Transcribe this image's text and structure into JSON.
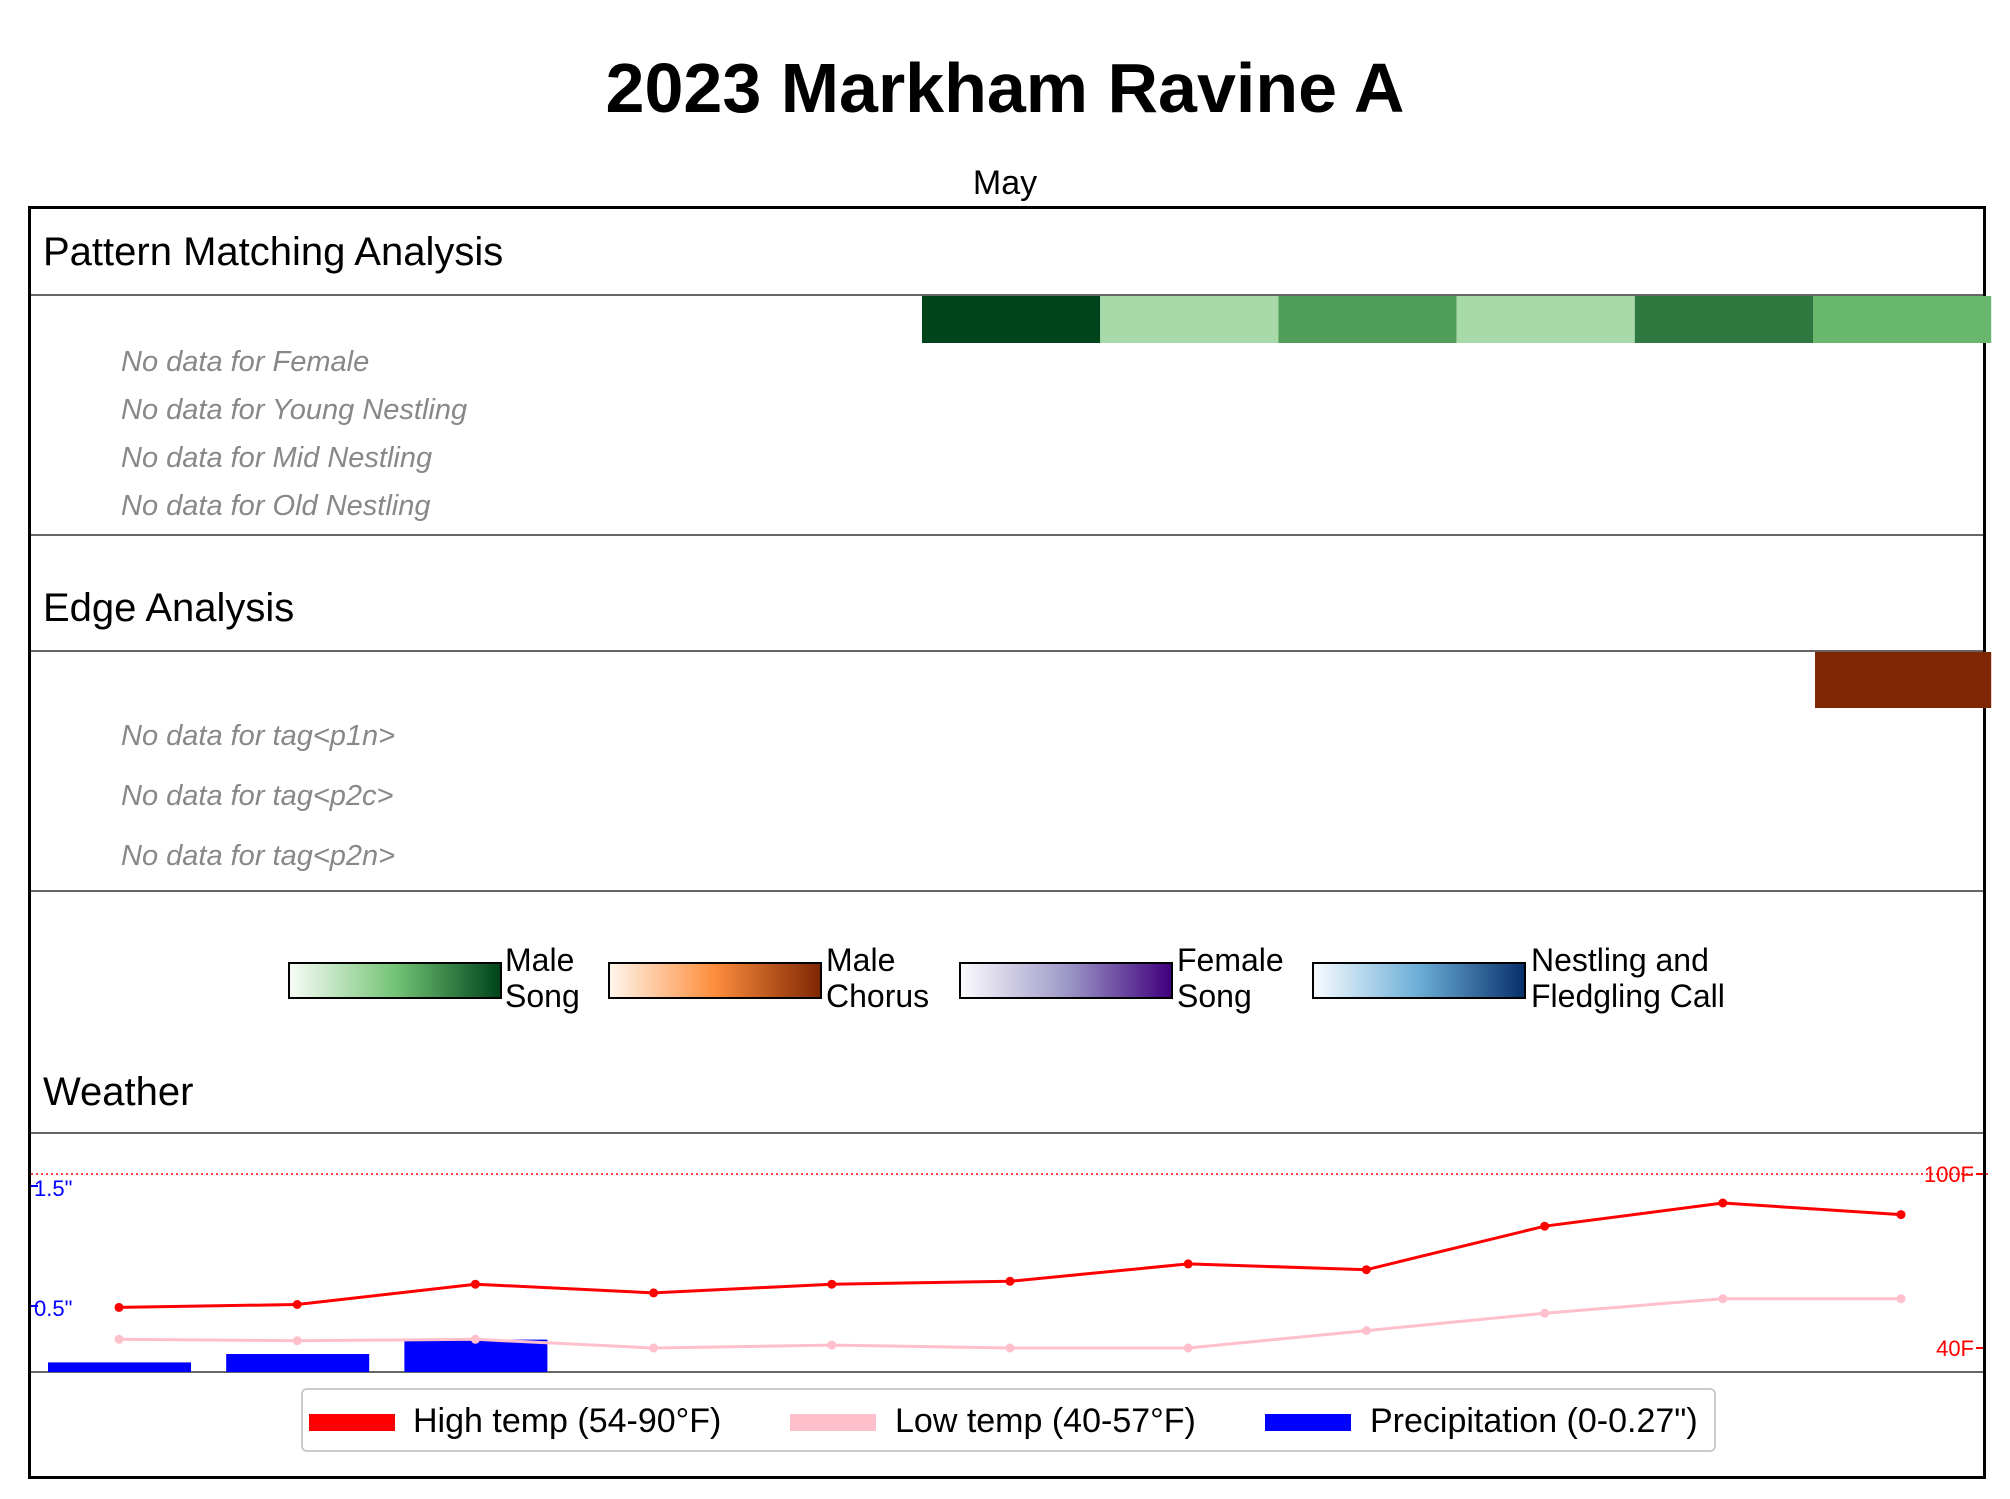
{
  "title": "2023 Markham Ravine A",
  "month": "May",
  "pattern": {
    "heading": "Pattern Matching Analysis",
    "no_data": [
      "No data for Female",
      "No data for Young Nestling",
      "No data for Mid Nestling",
      "No data for Old Nestling"
    ],
    "male_song_intensity": [
      0,
      0,
      0,
      0,
      0,
      1.0,
      0.3,
      0.65,
      0.3,
      0.8,
      0.55
    ]
  },
  "edge": {
    "heading": "Edge Analysis",
    "no_data": [
      "No data for tag<p1n>",
      "No data for tag<p2c>",
      "No data for tag<p2n>"
    ],
    "male_chorus_intensity": [
      0,
      0,
      0,
      0,
      0,
      0,
      0,
      0,
      0,
      0,
      1.0
    ]
  },
  "colorbars": [
    {
      "label_line1": "Male",
      "label_line2": "Song",
      "from": "#f7fcf5",
      "mid": "#74c476",
      "to": "#00441b"
    },
    {
      "label_line1": "Male",
      "label_line2": "Chorus",
      "from": "#fff5eb",
      "mid": "#fd8d3c",
      "to": "#7f2704"
    },
    {
      "label_line1": "Female",
      "label_line2": "Song",
      "from": "#fcfbfd",
      "mid": "#9e9ac8",
      "to": "#3f007d"
    },
    {
      "label_line1": "Nestling and",
      "label_line2": "Fledgling Call",
      "from": "#f7fbff",
      "mid": "#6baed6",
      "to": "#08306b"
    }
  ],
  "weather": {
    "heading": "Weather",
    "left_ticks": [
      "1.5\"",
      "0.5\""
    ],
    "right_ticks": [
      "100F",
      "40F"
    ],
    "legend": [
      "High temp (54-90°F)",
      "Low temp (40-57°F)",
      "Precipitation (0-0.27\")"
    ]
  },
  "chart_data": {
    "type": "line",
    "x": [
      1,
      2,
      3,
      4,
      5,
      6,
      7,
      8,
      9,
      10,
      11
    ],
    "series": [
      {
        "name": "High temp (54-90°F)",
        "color": "#ff0000",
        "values": [
          54,
          55,
          62,
          59,
          62,
          63,
          69,
          67,
          82,
          90,
          86
        ]
      },
      {
        "name": "Low temp (40-57°F)",
        "color": "#ffc0cb",
        "values": [
          43,
          42.5,
          43,
          40,
          41,
          40,
          40,
          46,
          52,
          57,
          57
        ]
      },
      {
        "name": "Precipitation (0-0.27\")",
        "color": "#0000ff",
        "type": "bar",
        "values": [
          0.08,
          0.15,
          0.27,
          0,
          0,
          0,
          0,
          0,
          0,
          0,
          0
        ]
      }
    ],
    "temp_ylim": [
      40,
      100
    ],
    "precip_ylim": [
      0,
      1.5
    ],
    "legend_position": "bottom"
  }
}
